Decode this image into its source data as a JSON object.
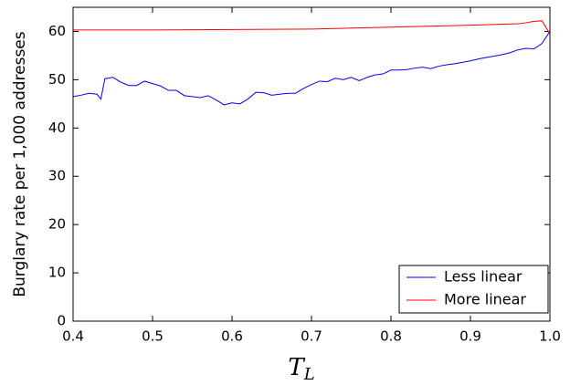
{
  "chart_data": {
    "type": "line",
    "ylabel": "Burglary rate per 1,000 addresses",
    "xlabel": "T",
    "xlabel_subscript": "L",
    "xlim": [
      0.4,
      1.0
    ],
    "xticks": [
      0.4,
      0.5,
      0.6,
      0.7,
      0.8,
      0.9,
      {
        "value": 1.0,
        "label": "1.0"
      }
    ],
    "ylim": [
      0,
      65
    ],
    "yticks": [
      0,
      10,
      20,
      30,
      40,
      50,
      60
    ],
    "legend": "lower right",
    "series": [
      {
        "name": "Less linear",
        "color": "#0000ff",
        "x": [
          0.4,
          0.41,
          0.42,
          0.43,
          0.435,
          0.44,
          0.45,
          0.46,
          0.47,
          0.48,
          0.49,
          0.5,
          0.51,
          0.52,
          0.53,
          0.54,
          0.55,
          0.56,
          0.57,
          0.58,
          0.59,
          0.6,
          0.61,
          0.62,
          0.63,
          0.64,
          0.65,
          0.66,
          0.67,
          0.68,
          0.69,
          0.7,
          0.71,
          0.72,
          0.73,
          0.74,
          0.75,
          0.76,
          0.77,
          0.78,
          0.79,
          0.8,
          0.81,
          0.82,
          0.83,
          0.84,
          0.85,
          0.86,
          0.87,
          0.88,
          0.89,
          0.9,
          0.91,
          0.92,
          0.93,
          0.94,
          0.95,
          0.96,
          0.97,
          0.98,
          0.99,
          1.0
        ],
        "values": [
          46.5,
          46.8,
          47.2,
          47.0,
          46.0,
          50.2,
          50.5,
          49.5,
          48.8,
          48.8,
          49.7,
          49.2,
          48.7,
          47.8,
          47.8,
          46.7,
          46.5,
          46.3,
          46.7,
          45.8,
          44.8,
          45.2,
          45.0,
          46.0,
          47.4,
          47.3,
          46.8,
          47.0,
          47.2,
          47.2,
          48.2,
          49.0,
          49.7,
          49.6,
          50.3,
          50.0,
          50.5,
          49.8,
          50.5,
          51.0,
          51.2,
          52.0,
          52.0,
          52.1,
          52.4,
          52.6,
          52.3,
          52.8,
          53.1,
          53.3,
          53.6,
          53.9,
          54.3,
          54.6,
          54.9,
          55.2,
          55.6,
          56.2,
          56.5,
          56.4,
          57.5,
          60.0
        ]
      },
      {
        "name": "More linear",
        "color": "#ff0000",
        "x": [
          0.4,
          0.5,
          0.6,
          0.7,
          0.8,
          0.9,
          0.96,
          0.97,
          0.98,
          0.99,
          1.0
        ],
        "values": [
          60.3,
          60.3,
          60.4,
          60.5,
          60.9,
          61.3,
          61.6,
          61.8,
          62.1,
          62.2,
          59.5
        ]
      }
    ]
  }
}
